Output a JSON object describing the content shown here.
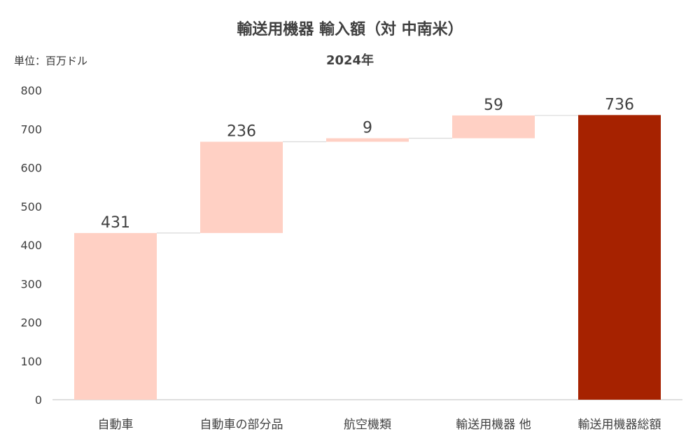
{
  "chart_data": {
    "type": "waterfall",
    "title": "輸送用機器 輸入額（対 中南米）",
    "subtitle": "2024年",
    "unit_label": "単位：百万ドル",
    "categories": [
      "自動車",
      "自動車の部分品",
      "航空機類",
      "輸送用機器 他",
      "輸送用機器総額"
    ],
    "values": [
      431,
      236,
      9,
      59,
      736
    ],
    "data_labels": [
      "431",
      "236",
      "9",
      "59",
      "736"
    ],
    "is_total": [
      false,
      false,
      false,
      false,
      true
    ],
    "ylim": [
      0,
      800
    ],
    "yticks": [
      0,
      100,
      200,
      300,
      400,
      500,
      600,
      700,
      800
    ],
    "grid": false,
    "colors": {
      "increment": "#FFD0C4",
      "total": "#A62200",
      "connector": "#D9D9D9",
      "axis": "#BFBFBF"
    }
  }
}
